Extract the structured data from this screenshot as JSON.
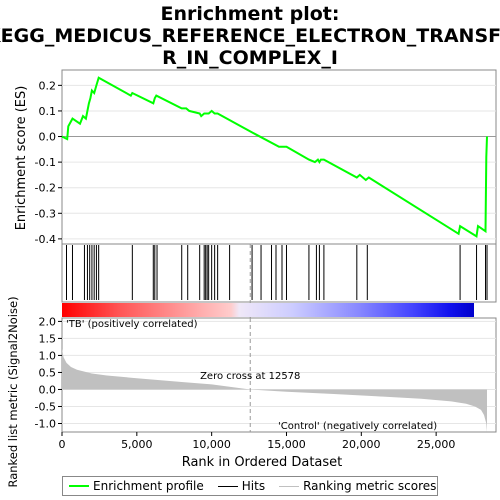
{
  "chart_data": {
    "type": "line",
    "title_lines": [
      "Enrichment plot:",
      "KEGG_MEDICUS_REFERENCE_ELECTRON_TRANSFE",
      "R_IN_COMPLEX_I"
    ],
    "es_panel": {
      "ylabel": "Enrichment score (ES)",
      "ylim": [
        -0.42,
        0.26
      ],
      "yticks": [
        0.2,
        0.1,
        0.0,
        -0.1,
        -0.2,
        -0.3,
        -0.4
      ],
      "series": [
        {
          "name": "Enrichment profile",
          "color": "#00ff00",
          "x": [
            0,
            350,
            420,
            700,
            1200,
            1400,
            1600,
            1800,
            1900,
            2000,
            2150,
            2300,
            2450,
            4600,
            4700,
            6100,
            6200,
            6300,
            8000,
            8300,
            8500,
            9200,
            9300,
            9500,
            9600,
            9700,
            9800,
            10000,
            10200,
            10400,
            12578,
            14500,
            15000,
            16500,
            16900,
            17100,
            17200,
            17300,
            17500,
            19700,
            19900,
            20300,
            20500,
            26500,
            26600,
            27700,
            27800,
            28300,
            28350,
            28400
          ],
          "y": [
            0.0,
            -0.01,
            0.04,
            0.07,
            0.05,
            0.08,
            0.07,
            0.13,
            0.15,
            0.18,
            0.17,
            0.2,
            0.23,
            0.16,
            0.17,
            0.13,
            0.15,
            0.16,
            0.11,
            0.11,
            0.1,
            0.09,
            0.08,
            0.09,
            0.09,
            0.09,
            0.09,
            0.1,
            0.09,
            0.09,
            0.02,
            -0.04,
            -0.04,
            -0.09,
            -0.1,
            -0.09,
            -0.1,
            -0.09,
            -0.09,
            -0.16,
            -0.15,
            -0.17,
            -0.16,
            -0.38,
            -0.35,
            -0.39,
            -0.35,
            -0.37,
            -0.08,
            0.0
          ]
        }
      ]
    },
    "hits_panel": {
      "series_name": "Hits",
      "positions": [
        300,
        700,
        1500,
        1700,
        1850,
        2000,
        2150,
        2300,
        2450,
        4700,
        6100,
        6200,
        6350,
        8000,
        8400,
        9200,
        9500,
        9600,
        9700,
        9800,
        10000,
        10200,
        10400,
        11200,
        12700,
        13300,
        14000,
        14300,
        14700,
        15000,
        16500,
        17000,
        17200,
        17500,
        19700,
        20400,
        26600,
        27700,
        28300,
        28400
      ]
    },
    "color_bar": {
      "label_pos": "'TB' (positively correlated)",
      "label_neg": "'Control' (negatively correlated)",
      "label_pos_color": "#ff0000",
      "label_neg_color": "#0000ff"
    },
    "metric_panel": {
      "series_name": "Ranking metric scores",
      "ylabel": "Ranked list metric (Signal2Noise)",
      "ylim": [
        -1.25,
        2.1
      ],
      "yticks": [
        2.0,
        1.5,
        1.0,
        0.5,
        0.0,
        -0.5,
        -1.0
      ],
      "zero_cross_label": "Zero cross at 12578",
      "zero_cross": 12578,
      "x": [
        0,
        100,
        300,
        600,
        1000,
        2000,
        3000,
        5000,
        8000,
        10000,
        12578,
        15000,
        18000,
        21000,
        24000,
        26000,
        27000,
        27600,
        28000,
        28200,
        28350,
        28400
      ],
      "y": [
        1.2,
        0.95,
        0.78,
        0.66,
        0.58,
        0.47,
        0.41,
        0.33,
        0.22,
        0.15,
        0.0,
        -0.07,
        -0.13,
        -0.2,
        -0.27,
        -0.35,
        -0.42,
        -0.5,
        -0.6,
        -0.75,
        -1.0,
        -1.25
      ]
    },
    "xaxis": {
      "xlabel": "Rank in Ordered Dataset",
      "xlim": [
        0,
        29000
      ],
      "xticks": [
        0,
        5000,
        10000,
        15000,
        20000,
        25000
      ],
      "xtick_labels": [
        "0",
        "5,000",
        "10,000",
        "15,000",
        "20,000",
        "25,000"
      ]
    },
    "legend": [
      {
        "label": "Enrichment profile",
        "color": "#00ff00"
      },
      {
        "label": "Hits",
        "color": "#000000"
      },
      {
        "label": "Ranking metric scores",
        "color": "#c0c0c0"
      }
    ]
  }
}
